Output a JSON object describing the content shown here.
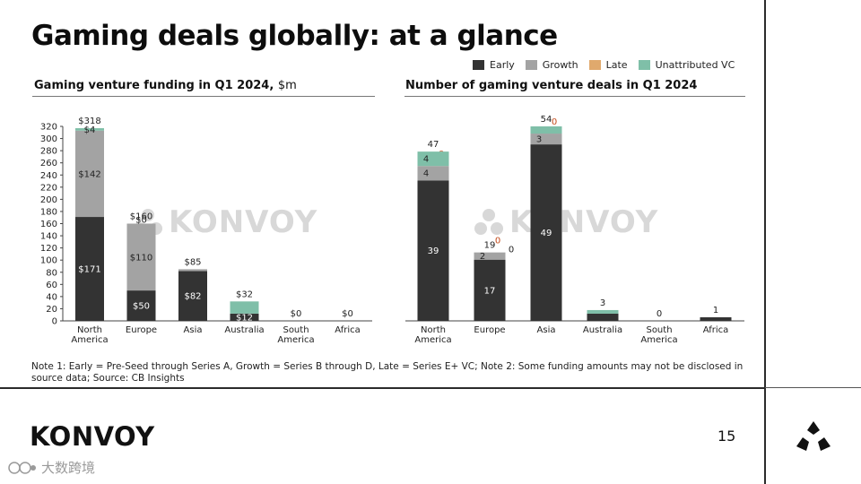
{
  "page": {
    "title": "Gaming deals globally: at a glance",
    "page_number": "15",
    "brand": "KONVOY",
    "watermark": "KONVOY",
    "source_mark": "大数跨境",
    "note": "Note 1: Early = Pre-Seed through Series A, Growth = Series B through D, Late = Series E+ VC; Note 2: Some funding amounts may not be disclosed in source data; Source: CB Insights"
  },
  "legend": [
    {
      "label": "Early",
      "color": "#333333"
    },
    {
      "label": "Growth",
      "color": "#a3a3a3"
    },
    {
      "label": "Late",
      "color": "#e0a96d"
    },
    {
      "label": "Unattributed VC",
      "color": "#7fbfa8"
    }
  ],
  "chart_data": [
    {
      "type": "bar",
      "stacked": true,
      "title": "Gaming venture funding in Q1 2024,",
      "title_unit": "$m",
      "ylim": [
        0,
        320
      ],
      "yticks": [
        "0",
        "20",
        "40",
        "60",
        "80",
        "100",
        "120",
        "140",
        "160",
        "180",
        "200",
        "220",
        "240",
        "260",
        "280",
        "300",
        "320"
      ],
      "categories": [
        [
          "North",
          "America"
        ],
        [
          "Europe"
        ],
        [
          "Asia"
        ],
        [
          "Australia"
        ],
        [
          "South",
          "America"
        ],
        [
          "Africa"
        ]
      ],
      "series": [
        {
          "name": "Early",
          "color": "#333333",
          "values": [
            171,
            50,
            82,
            12,
            0,
            0
          ],
          "labels": [
            "$171",
            "$50",
            "$82",
            "$12",
            "",
            ""
          ]
        },
        {
          "name": "Growth",
          "color": "#a3a3a3",
          "values": [
            142,
            110,
            3,
            0,
            0,
            0
          ],
          "labels": [
            "$142",
            "$110",
            "",
            "",
            "",
            ""
          ]
        },
        {
          "name": "Late",
          "color": "#e0a96d",
          "values": [
            0,
            0,
            0,
            0,
            0,
            0
          ],
          "labels": [
            "",
            "",
            "",
            "",
            "",
            ""
          ]
        },
        {
          "name": "Unattributed VC",
          "color": "#7fbfa8",
          "values": [
            4,
            0,
            0,
            20,
            0,
            0
          ],
          "labels": [
            "$4",
            "$0",
            "",
            "",
            "",
            ""
          ]
        }
      ],
      "totals": [
        "$318",
        "$160",
        "$85",
        "$32",
        "$0",
        "$0"
      ]
    },
    {
      "type": "bar",
      "stacked": true,
      "title": "Number of gaming venture deals in Q1 2024",
      "title_unit": "",
      "ylim": [
        0,
        54
      ],
      "categories": [
        [
          "North",
          "America"
        ],
        [
          "Europe"
        ],
        [
          "Asia"
        ],
        [
          "Australia"
        ],
        [
          "South",
          "America"
        ],
        [
          "Africa"
        ]
      ],
      "series": [
        {
          "name": "Early",
          "color": "#333333",
          "values": [
            39,
            17,
            49,
            2,
            0,
            1
          ],
          "labels": [
            "39",
            "17",
            "49",
            "",
            "",
            ""
          ]
        },
        {
          "name": "Growth",
          "color": "#a3a3a3",
          "values": [
            4,
            2,
            3,
            0,
            0,
            0
          ],
          "labels": [
            "4",
            "2",
            "3",
            "",
            "",
            ""
          ]
        },
        {
          "name": "Late",
          "color": "#e0a96d",
          "values": [
            0,
            0,
            0,
            0,
            0,
            0
          ],
          "labels": [
            "0",
            "0",
            "0",
            "",
            "",
            ""
          ]
        },
        {
          "name": "Unattributed VC",
          "color": "#7fbfa8",
          "values": [
            4,
            0,
            2,
            1,
            0,
            0
          ],
          "labels": [
            "4",
            "0",
            "",
            "",
            "",
            ""
          ]
        }
      ],
      "totals": [
        "47",
        "19",
        "54",
        "3",
        "0",
        "1"
      ]
    }
  ]
}
